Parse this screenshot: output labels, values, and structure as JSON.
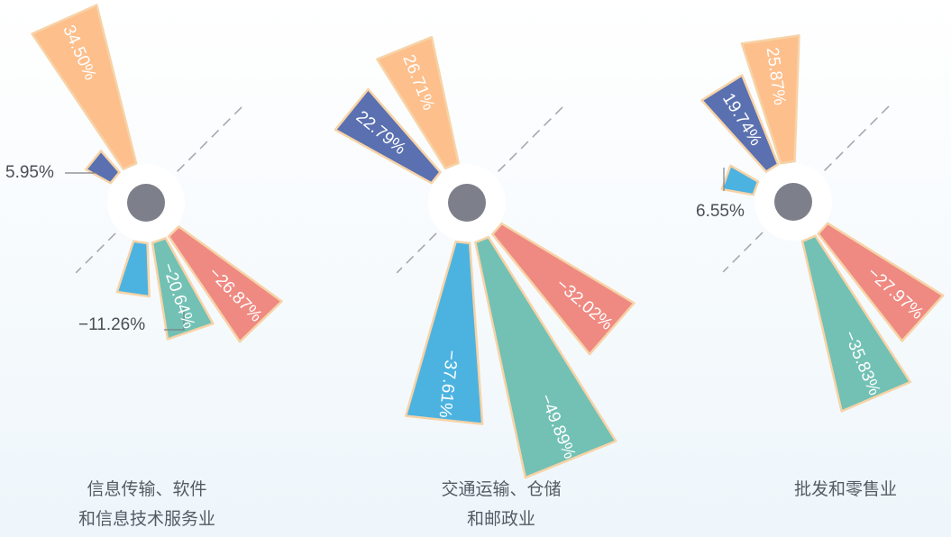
{
  "chart_data": [
    {
      "type": "radial-bar",
      "group_label_lines": [
        "信息传输、软件",
        "和信息技术服务业"
      ],
      "series": [
        {
          "value": 34.5,
          "label": "34.50%",
          "color": "#fdbf8c"
        },
        {
          "value": 5.95,
          "label": "5.95%",
          "color": "#5a70b0"
        },
        {
          "value": -11.26,
          "label": "−11.26%",
          "color": "#4cb3e1"
        },
        {
          "value": -20.64,
          "label": "−20.64%",
          "color": "#72c1b4"
        },
        {
          "value": -26.87,
          "label": "−26.87%",
          "color": "#ef8a82"
        }
      ]
    },
    {
      "type": "radial-bar",
      "group_label_lines": [
        "交通运输、仓储",
        "和邮政业"
      ],
      "series": [
        {
          "value": 26.71,
          "label": "26.71%",
          "color": "#fdbf8c"
        },
        {
          "value": 22.79,
          "label": "22.79%",
          "color": "#5a70b0"
        },
        {
          "value": -37.61,
          "label": "−37.61%",
          "color": "#4cb3e1"
        },
        {
          "value": -49.89,
          "label": "−49.89%",
          "color": "#72c1b4"
        },
        {
          "value": -32.02,
          "label": "−32.02%",
          "color": "#ef8a82"
        }
      ]
    },
    {
      "type": "radial-bar",
      "group_label_lines": [
        "批发和零售业"
      ],
      "series": [
        {
          "value": 25.87,
          "label": "25.87%",
          "color": "#fdbf8c"
        },
        {
          "value": 19.74,
          "label": "19.74%",
          "color": "#5a70b0"
        },
        {
          "value": 6.55,
          "label": "6.55%",
          "color": "#4cb3e1"
        },
        {
          "value": -35.83,
          "label": "−35.83%",
          "color": "#72c1b4"
        },
        {
          "value": -27.97,
          "label": "−27.97%",
          "color": "#ef8a82"
        }
      ]
    }
  ],
  "colors": {
    "outline": "#f7d3a7",
    "hub": "#7d7f8a",
    "hub_ring": "#ffffff",
    "axis": "#a6aab0",
    "label_light": "#ffffff",
    "label_dark": "#4a4f57"
  }
}
